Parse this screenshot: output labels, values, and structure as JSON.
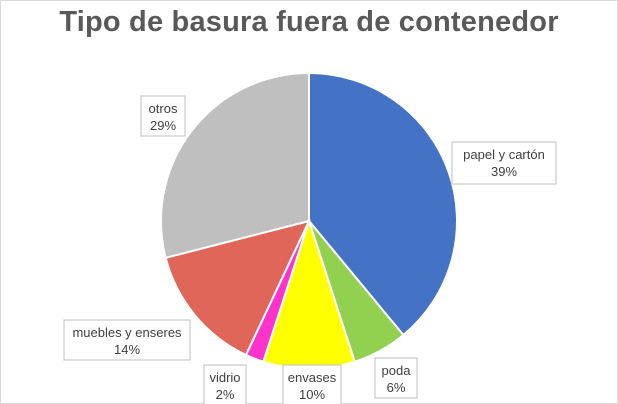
{
  "chart_data": {
    "type": "pie",
    "title": "Tipo de basura fuera de contenedor",
    "categories": [
      "papel y cartón",
      "poda",
      "envases",
      "vidrio",
      "muebles y enseres",
      "otros"
    ],
    "values": [
      39,
      6,
      10,
      2,
      14,
      29
    ],
    "value_labels": [
      "39%",
      "6%",
      "10%",
      "2%",
      "14%",
      "29%"
    ],
    "colors": [
      "#4472C4",
      "#92D050",
      "#FFFF00",
      "#FF33CC",
      "#E06659",
      "#BFBFBF"
    ],
    "start": "12 o'clock",
    "direction": "clockwise",
    "legend": "none",
    "data_labels": "callouts with category name and percentage"
  }
}
